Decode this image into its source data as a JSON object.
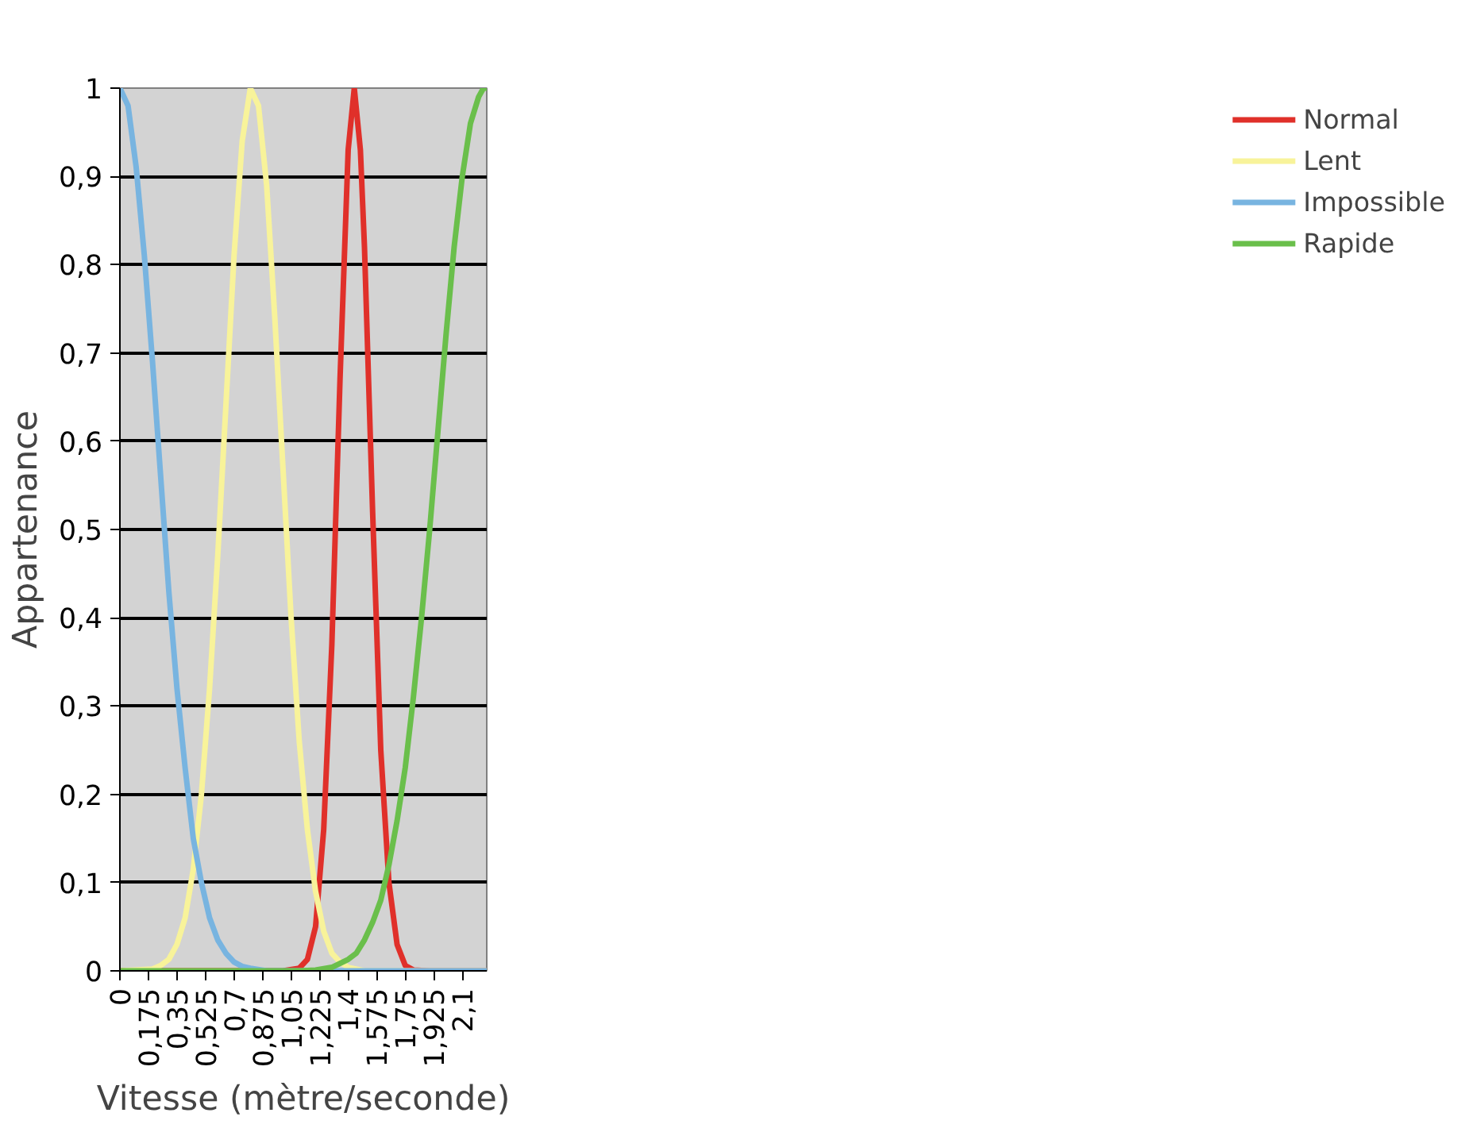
{
  "chart_data": {
    "type": "line",
    "xlabel": "Vitesse (mètre/seconde)",
    "ylabel": "Appartenance",
    "xlim": [
      0,
      2.25
    ],
    "ylim": [
      0,
      1
    ],
    "xticks": [
      0,
      {
        "value": 0.175,
        "label": "0,175"
      },
      {
        "value": 0.35,
        "label": "0,35"
      },
      {
        "value": 0.525,
        "label": "0,525"
      },
      {
        "value": 0.7,
        "label": "0,7"
      },
      {
        "value": 0.875,
        "label": "0,875"
      },
      {
        "value": 1.05,
        "label": "1,05"
      },
      {
        "value": 1.225,
        "label": "1,225"
      },
      {
        "value": 1.4,
        "label": "1,4"
      },
      {
        "value": 1.575,
        "label": "1,575"
      },
      {
        "value": 1.75,
        "label": "1,75"
      },
      {
        "value": 1.925,
        "label": "1,925"
      },
      {
        "value": 2.1,
        "label": "2,1"
      }
    ],
    "yticks": [
      0,
      {
        "value": 0.1,
        "label": "0,1"
      },
      {
        "value": 0.2,
        "label": "0,2"
      },
      {
        "value": 0.3,
        "label": "0,3"
      },
      {
        "value": 0.4,
        "label": "0,4"
      },
      {
        "value": 0.5,
        "label": "0,5"
      },
      {
        "value": 0.6,
        "label": "0,6"
      },
      {
        "value": 0.7,
        "label": "0,7"
      },
      {
        "value": 0.8,
        "label": "0,8"
      },
      {
        "value": 0.9,
        "label": "0,9"
      },
      1
    ],
    "grid": "y",
    "legend": "right",
    "marker": "none",
    "line_style": "solid",
    "series": [
      {
        "name": "Normal",
        "color": "#e0302a",
        "x": [
          0,
          1.0,
          1.1,
          1.15,
          1.2,
          1.25,
          1.3,
          1.35,
          1.4,
          1.4375,
          1.475,
          1.5,
          1.55,
          1.6,
          1.65,
          1.7,
          1.75,
          1.8,
          1.9,
          2.25
        ],
        "values": [
          0,
          0,
          0.003,
          0.013,
          0.05,
          0.16,
          0.37,
          0.67,
          0.93,
          1.0,
          0.93,
          0.82,
          0.52,
          0.25,
          0.1,
          0.03,
          0.006,
          0.001,
          0,
          0
        ]
      },
      {
        "name": "Lent",
        "color": "#f8f39a",
        "x": [
          0,
          0.2,
          0.25,
          0.3,
          0.35,
          0.4,
          0.45,
          0.5,
          0.55,
          0.6,
          0.65,
          0.7,
          0.75,
          0.8,
          0.85,
          0.9,
          0.95,
          1.0,
          1.05,
          1.1,
          1.15,
          1.2,
          1.25,
          1.3,
          1.35,
          1.4,
          1.5,
          2.25
        ],
        "values": [
          0,
          0.002,
          0.006,
          0.013,
          0.03,
          0.06,
          0.115,
          0.2,
          0.32,
          0.47,
          0.64,
          0.81,
          0.94,
          1.0,
          0.98,
          0.89,
          0.74,
          0.57,
          0.4,
          0.26,
          0.16,
          0.09,
          0.045,
          0.02,
          0.01,
          0.004,
          0,
          0
        ]
      },
      {
        "name": "Impossible",
        "color": "#78b4e0",
        "x": [
          0,
          0.05,
          0.1,
          0.15,
          0.2,
          0.25,
          0.3,
          0.35,
          0.4,
          0.45,
          0.5,
          0.55,
          0.6,
          0.65,
          0.7,
          0.75,
          0.8,
          0.9,
          2.25
        ],
        "values": [
          1,
          0.98,
          0.91,
          0.81,
          0.69,
          0.56,
          0.43,
          0.32,
          0.23,
          0.15,
          0.1,
          0.06,
          0.035,
          0.02,
          0.01,
          0.005,
          0.003,
          0,
          0
        ]
      },
      {
        "name": "Rapide",
        "color": "#6abf4b",
        "x": [
          0,
          1.1,
          1.2,
          1.3,
          1.4,
          1.45,
          1.5,
          1.55,
          1.6,
          1.65,
          1.7,
          1.75,
          1.8,
          1.85,
          1.9,
          1.95,
          2.0,
          2.05,
          2.1,
          2.15,
          2.2,
          2.23,
          2.25
        ],
        "values": [
          0,
          0,
          0.001,
          0.004,
          0.013,
          0.02,
          0.035,
          0.055,
          0.08,
          0.12,
          0.17,
          0.23,
          0.31,
          0.4,
          0.5,
          0.61,
          0.72,
          0.82,
          0.9,
          0.96,
          0.99,
          1.0,
          1.0
        ]
      }
    ]
  }
}
